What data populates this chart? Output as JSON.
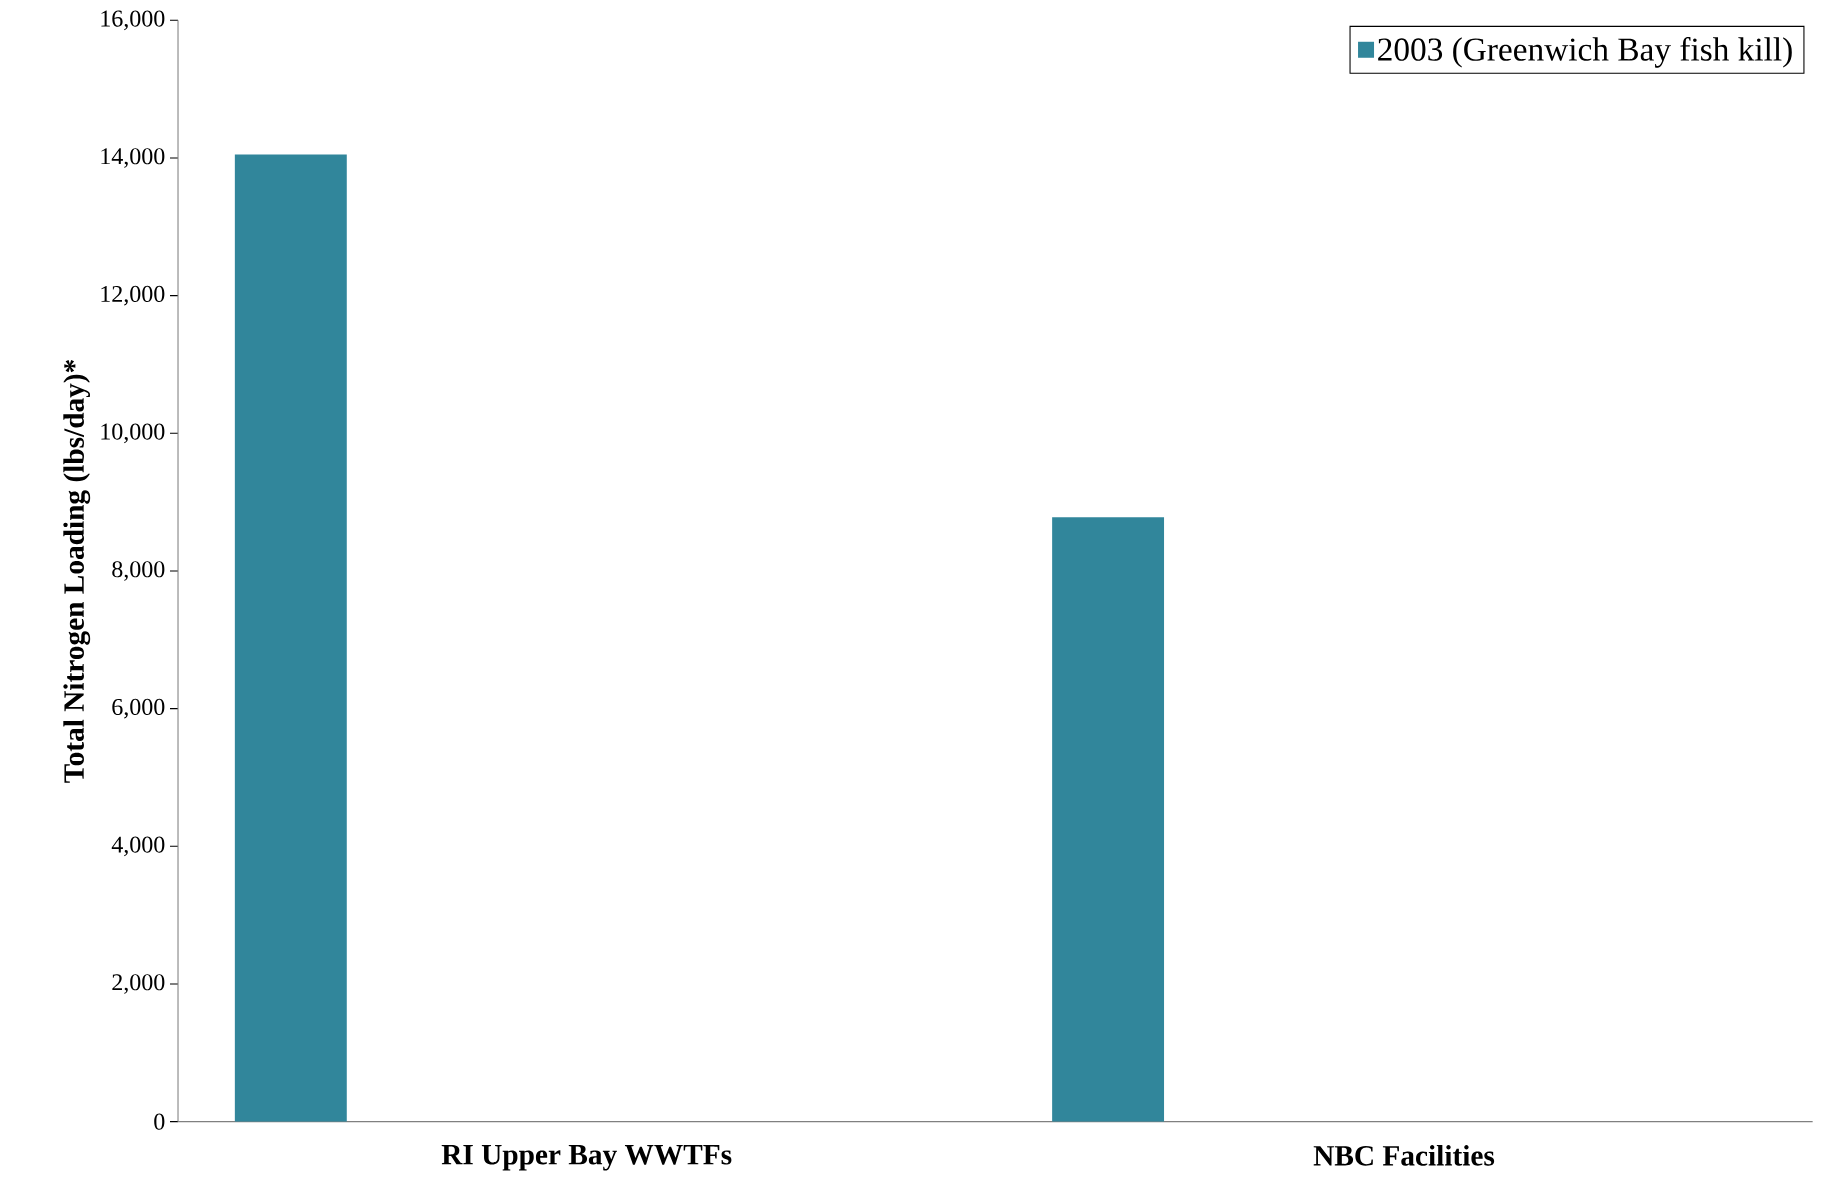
{
  "chart_data": {
    "type": "bar",
    "ylabel": "Total Nitrogen Loading (lbs/day)*",
    "categories": [
      "RI Upper Bay WWTFs",
      "NBC Facilities"
    ],
    "series": [
      {
        "name": "2003 (Greenwich Bay fish kill)",
        "color": "#31869b",
        "values": [
          14050,
          8780
        ]
      }
    ],
    "ylim": [
      0,
      16000
    ],
    "yticks": [
      {
        "value": 0,
        "label": "0"
      },
      {
        "value": 2000,
        "label": "2,000"
      },
      {
        "value": 4000,
        "label": "4,000"
      },
      {
        "value": 6000,
        "label": "6,000"
      },
      {
        "value": 8000,
        "label": "8,000"
      },
      {
        "value": 10000,
        "label": "10,000"
      },
      {
        "value": 12000,
        "label": "12,000"
      },
      {
        "value": 14000,
        "label": "14,000"
      },
      {
        "value": 16000,
        "label": "16,000"
      }
    ],
    "legend": "top right",
    "grid": false
  }
}
